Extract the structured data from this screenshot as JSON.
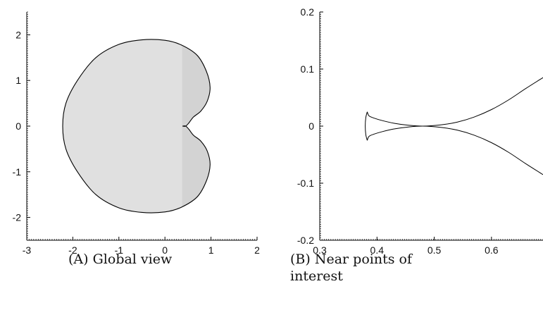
{
  "chart_data": [
    {
      "type": "area",
      "panel_letter": "A",
      "caption": "Global view",
      "xlim": [
        -3,
        2
      ],
      "ylim": [
        -2.5,
        2.5
      ],
      "xticks": [
        -3,
        -2,
        -1,
        0,
        1,
        2
      ],
      "yticks": [
        -2,
        -1,
        0,
        1,
        2
      ],
      "x_tick_labels": [
        "-3",
        "-2",
        "-1",
        "0",
        "1",
        "2"
      ],
      "y_tick_labels": [
        "-2",
        "-1",
        "0",
        "1",
        "2"
      ],
      "grid": false,
      "fill_colors": [
        "#e0e0e0",
        "#d3d3d3"
      ],
      "fill_split_x": 0.37,
      "boundary_color": "#000000",
      "boundary_points": [
        [
          0.38,
          0.0
        ],
        [
          0.45,
          0.0
        ],
        [
          0.52,
          0.07
        ],
        [
          0.62,
          0.2
        ],
        [
          0.78,
          0.33
        ],
        [
          0.92,
          0.55
        ],
        [
          0.98,
          0.85
        ],
        [
          0.9,
          1.2
        ],
        [
          0.7,
          1.55
        ],
        [
          0.35,
          1.78
        ],
        [
          0.0,
          1.88
        ],
        [
          -0.5,
          1.89
        ],
        [
          -1.0,
          1.79
        ],
        [
          -1.5,
          1.5
        ],
        [
          -1.9,
          1.0
        ],
        [
          -2.15,
          0.5
        ],
        [
          -2.22,
          0.0
        ],
        [
          -2.15,
          -0.5
        ],
        [
          -1.9,
          -1.0
        ],
        [
          -1.5,
          -1.5
        ],
        [
          -1.0,
          -1.79
        ],
        [
          -0.5,
          -1.89
        ],
        [
          0.0,
          -1.88
        ],
        [
          0.35,
          -1.78
        ],
        [
          0.7,
          -1.55
        ],
        [
          0.9,
          -1.2
        ],
        [
          0.98,
          -0.85
        ],
        [
          0.92,
          -0.55
        ],
        [
          0.78,
          -0.33
        ],
        [
          0.62,
          -0.2
        ],
        [
          0.52,
          -0.07
        ],
        [
          0.45,
          0.0
        ],
        [
          0.38,
          0.0
        ]
      ]
    },
    {
      "type": "line",
      "panel_letter": "B",
      "caption_line1": "Near points of",
      "caption_line2": "interest",
      "xlim": [
        0.3,
        0.69
      ],
      "ylim": [
        -0.2,
        0.2
      ],
      "xticks": [
        0.3,
        0.4,
        0.5,
        0.6
      ],
      "yticks": [
        -0.2,
        -0.1,
        0,
        0.1,
        0.2
      ],
      "x_tick_labels": [
        "0.3",
        "0.4",
        "0.5",
        "0.6"
      ],
      "y_tick_labels": [
        "-0.2",
        "-0.1",
        "0",
        "0.1",
        "0.2"
      ],
      "grid": false,
      "line_color": "#000000",
      "series": [
        {
          "points": [
            [
              0.69,
              0.085
            ],
            [
              0.66,
              0.066
            ],
            [
              0.63,
              0.046
            ],
            [
              0.6,
              0.029
            ],
            [
              0.57,
              0.016
            ],
            [
              0.54,
              0.007
            ],
            [
              0.51,
              0.002
            ],
            [
              0.48,
              0.0
            ],
            [
              0.455,
              0.0015
            ],
            [
              0.43,
              0.005
            ],
            [
              0.41,
              0.0095
            ],
            [
              0.395,
              0.014
            ],
            [
              0.386,
              0.018
            ],
            [
              0.383,
              0.025
            ]
          ]
        },
        {
          "points": [
            [
              0.69,
              -0.085
            ],
            [
              0.66,
              -0.066
            ],
            [
              0.63,
              -0.046
            ],
            [
              0.6,
              -0.029
            ],
            [
              0.57,
              -0.016
            ],
            [
              0.54,
              -0.007
            ],
            [
              0.51,
              -0.002
            ],
            [
              0.48,
              0.0
            ],
            [
              0.455,
              -0.0015
            ],
            [
              0.43,
              -0.005
            ],
            [
              0.41,
              -0.0095
            ],
            [
              0.395,
              -0.014
            ],
            [
              0.386,
              -0.018
            ],
            [
              0.383,
              -0.025
            ]
          ]
        },
        {
          "points": [
            [
              0.383,
              0.025
            ],
            [
              0.3805,
              0.015
            ],
            [
              0.3795,
              0.0
            ],
            [
              0.3805,
              -0.015
            ],
            [
              0.383,
              -0.025
            ]
          ]
        }
      ]
    }
  ]
}
